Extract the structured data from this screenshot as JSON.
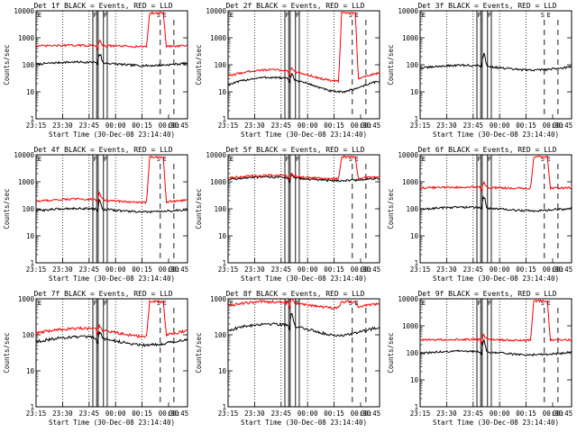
{
  "figure": {
    "xlabel": "Start Time (30-Dec-08 23:14:40)",
    "ylabel": "Counts/sec",
    "x_tick_labels": [
      "23:15",
      "23:30",
      "23:45",
      "00:00",
      "00:15",
      "00:30",
      "00:45"
    ],
    "y_tick_labels": [
      "1",
      "10",
      "100",
      "1000",
      "10000"
    ],
    "event_markers": [
      "E",
      "F",
      "F",
      "S",
      "E"
    ],
    "colors": {
      "events": "#000000",
      "lld": "#ff0000",
      "axes": "#000000",
      "background": "#ffffff"
    }
  },
  "chart_data": [
    {
      "type": "line",
      "title": "Det 1f BLACK = Events, RED = LLD",
      "ylim": [
        1,
        10000
      ],
      "yscale": "log",
      "series": [
        {
          "name": "Events",
          "baseline": 110,
          "hump_amp": 0.15,
          "spike": 2.2
        },
        {
          "name": "LLD",
          "baseline": 500,
          "hump_amp": 0.05,
          "spike": 1.6,
          "saa_peak": 9000
        }
      ]
    },
    {
      "type": "line",
      "title": "Det 2f BLACK = Events, RED = LLD",
      "ylim": [
        1,
        10000
      ],
      "yscale": "log",
      "series": [
        {
          "name": "Events",
          "baseline": 22,
          "hump_amp": 0.55,
          "spike": 1.6
        },
        {
          "name": "LLD",
          "baseline": 45,
          "hump_amp": 0.45,
          "spike": 1.4,
          "saa_peak": 9000
        }
      ]
    },
    {
      "type": "line",
      "title": "Det 3f BLACK = Events, RED = LLD",
      "ylim": [
        1,
        10000
      ],
      "yscale": "log",
      "series": [
        {
          "name": "Events",
          "baseline": 80,
          "hump_amp": 0.2,
          "spike": 3.0
        }
      ]
    },
    {
      "type": "line",
      "title": "Det 4f BLACK = Events, RED = LLD",
      "ylim": [
        1,
        10000
      ],
      "yscale": "log",
      "series": [
        {
          "name": "Events",
          "baseline": 90,
          "hump_amp": 0.15,
          "spike": 2.0
        },
        {
          "name": "LLD",
          "baseline": 200,
          "hump_amp": 0.15,
          "spike": 1.8,
          "saa_peak": 9000
        }
      ]
    },
    {
      "type": "line",
      "title": "Det 5f BLACK = Events, RED = LLD",
      "ylim": [
        1,
        10000
      ],
      "yscale": "log",
      "series": [
        {
          "name": "Events",
          "baseline": 1300,
          "hump_amp": 0.15,
          "spike": 1.2
        },
        {
          "name": "LLD",
          "baseline": 1500,
          "hump_amp": 0.15,
          "spike": 1.2,
          "saa_peak": 9000
        }
      ]
    },
    {
      "type": "line",
      "title": "Det 6f BLACK = Events, RED = LLD",
      "ylim": [
        1,
        10000
      ],
      "yscale": "log",
      "series": [
        {
          "name": "Events",
          "baseline": 100,
          "hump_amp": 0.15,
          "spike": 2.5
        },
        {
          "name": "LLD",
          "baseline": 600,
          "hump_amp": 0.05,
          "spike": 1.5,
          "saa_peak": 9000
        }
      ]
    },
    {
      "type": "line",
      "title": "Det 7f BLACK = Events, RED = LLD",
      "ylim": [
        1,
        1000
      ],
      "yscale": "log",
      "series": [
        {
          "name": "Events",
          "baseline": 70,
          "hump_amp": 0.25,
          "spike": 1.5
        },
        {
          "name": "LLD",
          "baseline": 120,
          "hump_amp": 0.25,
          "spike": 1.4,
          "saa_peak": 900
        }
      ]
    },
    {
      "type": "line",
      "title": "Det 8f BLACK = Events, RED = LLD",
      "ylim": [
        1,
        1000
      ],
      "yscale": "log",
      "series": [
        {
          "name": "Events",
          "baseline": 150,
          "hump_amp": 0.35,
          "spike": 2.0
        },
        {
          "name": "LLD",
          "baseline": 700,
          "hump_amp": 0.2,
          "spike": 1.4,
          "saa_peak": 900
        }
      ]
    },
    {
      "type": "line",
      "title": "Det 9f BLACK = Events, RED = LLD",
      "ylim": [
        1,
        10000
      ],
      "yscale": "log",
      "series": [
        {
          "name": "Events",
          "baseline": 100,
          "hump_amp": 0.15,
          "spike": 2.5
        },
        {
          "name": "LLD",
          "baseline": 300,
          "hump_amp": 0.05,
          "spike": 1.5,
          "saa_peak": 9000
        }
      ]
    }
  ]
}
